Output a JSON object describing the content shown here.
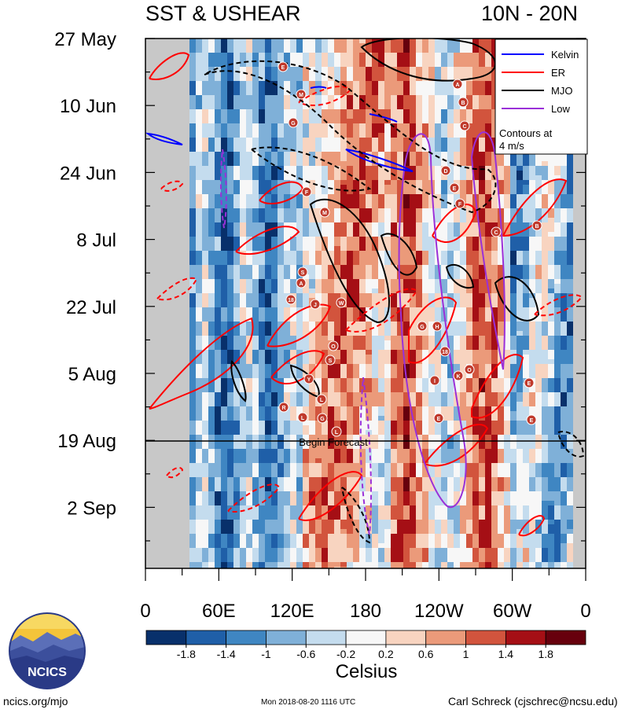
{
  "header": {
    "title_left": "SST & USHEAR",
    "title_right": "10N - 20N"
  },
  "footer": {
    "left": "ncics.org/mjo",
    "middle": "Mon 2018-08-20 1116 UTC",
    "right": "Carl Schreck (cjschrec@ncsu.edu)"
  },
  "logo": {
    "text": "NCICS"
  },
  "chart_data": {
    "type": "heatmap",
    "title": "SST & USHEAR",
    "region": "10N - 20N",
    "x_ticks": [
      "0",
      "60E",
      "120E",
      "180",
      "120W",
      "60W",
      "0"
    ],
    "y_ticks": [
      "27 May",
      "10 Jun",
      "24 Jun",
      "8 Jul",
      "22 Jul",
      "5 Aug",
      "19 Aug",
      "2 Sep"
    ],
    "forecast_start": "19 Aug",
    "forecast_label": "Begin Forecast",
    "colorbar": {
      "label": "Celsius",
      "tick_labels": [
        "-1.8",
        "-1.4",
        "-1",
        "-0.6",
        "-0.2",
        "0.2",
        "0.6",
        "1",
        "1.4",
        "1.8"
      ],
      "colors": [
        "#08306b",
        "#1f5fa8",
        "#3f86c2",
        "#7fb0d8",
        "#c4dcee",
        "#f7f7f7",
        "#f8d4c0",
        "#eb9a7a",
        "#d2543d",
        "#a50f15",
        "#67000d"
      ]
    },
    "legend": {
      "placement": "top-right",
      "entries": [
        {
          "name": "Kelvin",
          "color": "#0000ff"
        },
        {
          "name": "ER",
          "color": "#ff0000"
        },
        {
          "name": "MJO",
          "color": "#000000"
        },
        {
          "name": "Low",
          "color": "#9a30d8"
        }
      ],
      "note_line1": "Contours at",
      "note_line2": "4 m/s"
    },
    "storm_labels": [
      "E",
      "A",
      "M",
      "B",
      "G",
      "C",
      "D",
      "E",
      "F",
      "F",
      "M",
      "C",
      "B",
      "S",
      "A",
      "18",
      "J",
      "W",
      "O",
      "G",
      "H",
      "18",
      "S",
      "I",
      "K",
      "O",
      "Y",
      "L",
      "E",
      "R",
      "L",
      "G",
      "L",
      "E",
      "E"
    ]
  }
}
